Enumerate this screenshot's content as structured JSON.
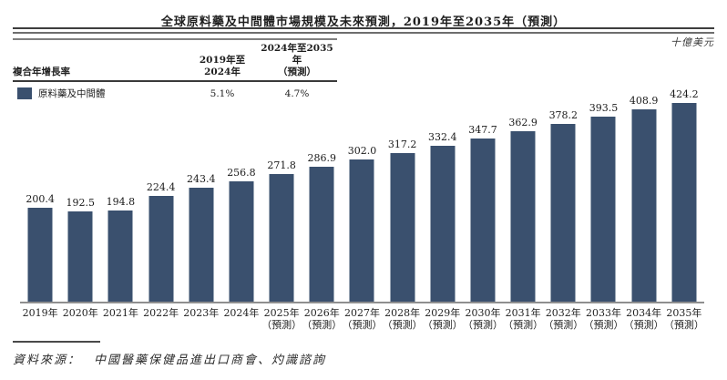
{
  "title": "全球原料藥及中間體市場規模及未來預測，2019年至2035年（預測）",
  "unit_label": "十億美元",
  "colors": {
    "bar": "#3a506e",
    "axis": "#8f8f8f"
  },
  "cagr_table": {
    "header": {
      "col1": "複合年增長率",
      "col2": "2019年至2024年",
      "col3_line1": "2024年至2035年",
      "col3_line2": "（預測）"
    },
    "row": {
      "legend_label": "原料藥及中間體",
      "cagr_2019_2024": "5.1%",
      "cagr_2024_2035": "4.7%"
    }
  },
  "source": {
    "prefix": "資料來源：",
    "text": "中國醫藥保健品進出口商會、灼識諮詢"
  },
  "chart_data": {
    "type": "bar",
    "title": "全球原料藥及中間體市場規模及未來預測，2019年至2035年（預測）",
    "ylabel": "十億美元",
    "xlabel": "",
    "grid": false,
    "legend_position": "top-left-table",
    "forecast_suffix": "（預測）",
    "forecast_start_index": 6,
    "categories": [
      "2019年",
      "2020年",
      "2021年",
      "2022年",
      "2023年",
      "2024年",
      "2025年",
      "2026年",
      "2027年",
      "2028年",
      "2029年",
      "2030年",
      "2031年",
      "2032年",
      "2033年",
      "2034年",
      "2035年"
    ],
    "series": [
      {
        "name": "原料藥及中間體",
        "values": [
          200.4,
          192.5,
          194.8,
          224.4,
          243.4,
          256.8,
          271.8,
          286.9,
          302.0,
          317.2,
          332.4,
          347.7,
          362.9,
          378.2,
          393.5,
          408.9,
          424.2
        ]
      }
    ],
    "ylim": [
      0,
      450
    ]
  }
}
